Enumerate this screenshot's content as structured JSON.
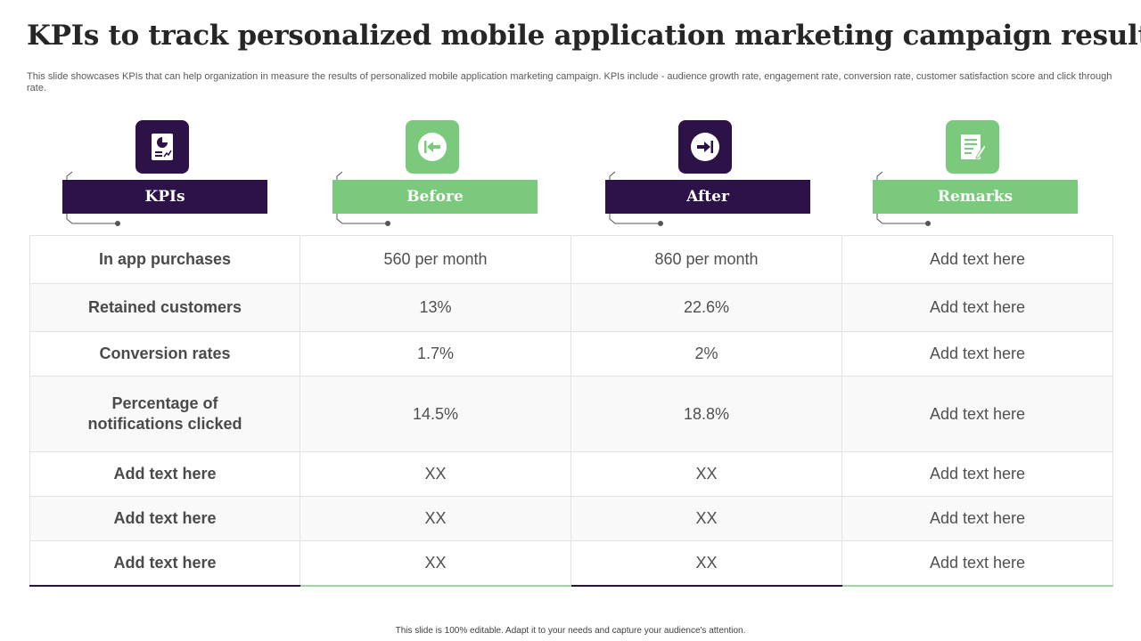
{
  "title": "KPIs to track personalized mobile application marketing campaign results",
  "subtitle": "This slide showcases KPIs that can help organization in measure the results of personalized mobile application marketing campaign. KPIs include - audience growth rate, engagement rate, conversion rate, customer satisfaction score and click through rate.",
  "headers": [
    {
      "label": "KPIs",
      "icon": "pie-chart-report-icon",
      "color": "#2c1247"
    },
    {
      "label": "Before",
      "icon": "arrow-left-circle-icon",
      "color": "#7ac97c"
    },
    {
      "label": "After",
      "icon": "arrow-right-circle-icon",
      "color": "#2c1247"
    },
    {
      "label": "Remarks",
      "icon": "notepad-pencil-icon",
      "color": "#7ac97c"
    }
  ],
  "rows": [
    {
      "kpi": "In  app purchases",
      "before": "560 per month",
      "after": "860 per month",
      "remarks": "Add text here"
    },
    {
      "kpi": "Retained customers",
      "before": "13%",
      "after": "22.6%",
      "remarks": "Add text here"
    },
    {
      "kpi": "Conversion rates",
      "before": "1.7%",
      "after": "2%",
      "remarks": "Add text here"
    },
    {
      "kpi": "Percentage of notifications clicked",
      "before": "14.5%",
      "after": "18.8%",
      "remarks": "Add text here"
    },
    {
      "kpi": "Add text here",
      "before": "XX",
      "after": "XX",
      "remarks": "Add text here"
    },
    {
      "kpi": "Add text here",
      "before": "XX",
      "after": "XX",
      "remarks": "Add text here"
    },
    {
      "kpi": "Add text here",
      "before": "XX",
      "after": "XX",
      "remarks": "Add text here"
    }
  ],
  "footer": "This slide is 100% editable.  Adapt it to your needs and capture your audience's attention."
}
